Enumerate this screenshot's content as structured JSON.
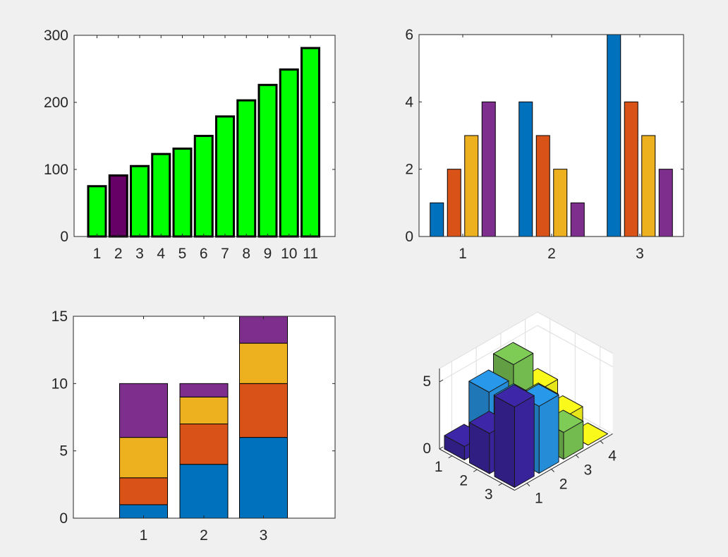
{
  "chart_data": [
    {
      "type": "bar",
      "categories": [
        "1",
        "2",
        "3",
        "4",
        "5",
        "6",
        "7",
        "8",
        "9",
        "10",
        "11"
      ],
      "values": [
        75,
        91,
        105,
        123,
        131,
        150,
        179,
        203,
        226,
        249,
        281
      ],
      "colors": [
        "#00ff00",
        "#660066",
        "#00ff00",
        "#00ff00",
        "#00ff00",
        "#00ff00",
        "#00ff00",
        "#00ff00",
        "#00ff00",
        "#00ff00",
        "#00ff00"
      ],
      "edge_color": "#000000",
      "ylim": [
        0,
        300
      ],
      "yticks": [
        0,
        100,
        200,
        300
      ],
      "grid": false
    },
    {
      "type": "bar",
      "categories": [
        "1",
        "2",
        "3"
      ],
      "series": [
        {
          "values": [
            1,
            4,
            6
          ],
          "color": "#0072bd"
        },
        {
          "values": [
            2,
            3,
            4
          ],
          "color": "#d95319"
        },
        {
          "values": [
            3,
            2,
            3
          ],
          "color": "#edb120"
        },
        {
          "values": [
            4,
            1,
            2
          ],
          "color": "#7e2f8e"
        }
      ],
      "ylim": [
        0,
        6
      ],
      "yticks": [
        0,
        2,
        4,
        6
      ],
      "grid": false
    },
    {
      "type": "bar",
      "stacked": true,
      "categories": [
        "1",
        "2",
        "3"
      ],
      "series": [
        {
          "values": [
            1,
            4,
            6
          ],
          "color": "#0072bd"
        },
        {
          "values": [
            2,
            3,
            4
          ],
          "color": "#d95319"
        },
        {
          "values": [
            3,
            2,
            3
          ],
          "color": "#edb120"
        },
        {
          "values": [
            4,
            1,
            2
          ],
          "color": "#7e2f8e"
        }
      ],
      "ylim": [
        0,
        15
      ],
      "yticks": [
        0,
        5,
        10,
        15
      ],
      "grid": false
    },
    {
      "type": "bar3",
      "rows": [
        "1",
        "2",
        "3"
      ],
      "cols": [
        "1",
        "2",
        "3",
        "4"
      ],
      "values": [
        [
          1,
          4,
          5,
          2
        ],
        [
          3,
          4,
          3,
          1
        ],
        [
          6,
          5,
          2,
          0
        ]
      ],
      "col_colors": [
        "#3e26a8",
        "#2898eb",
        "#7ecb56",
        "#f9f91c"
      ],
      "zlim": [
        0,
        6
      ],
      "zticks": [
        0,
        5
      ],
      "grid": true
    }
  ]
}
